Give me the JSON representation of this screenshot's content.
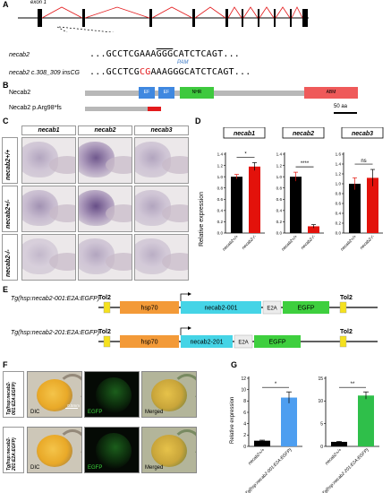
{
  "panelA": {
    "label": "A",
    "exon_label": "exon 1",
    "gene": "necab2",
    "wt_seq_pre": "GCCTCGAAA",
    "wt_seq_pam": "GGG",
    "wt_seq_post": "CATCTCAGT",
    "pam": "PAM",
    "mut_label": "necab2 c.308_309 insCG",
    "mut_seq_pre": "GCCTCG",
    "mut_seq_ins": "CG",
    "mut_seq_post": "AAAGGGCATCTCAGT",
    "dots_left": "...",
    "dots_right": "..."
  },
  "panelB": {
    "label": "B",
    "protein1": "Necab2",
    "protein2": "Necab2 p.Arg98*fs",
    "domains": [
      "EF",
      "EF",
      "NHR",
      "ABM"
    ],
    "scale": "50 aa"
  },
  "panelC": {
    "label": "C",
    "cols": [
      "necab1",
      "necab2",
      "necab3"
    ],
    "rows": [
      "necab2+/+",
      "necab2+/-",
      "necab2-/-"
    ]
  },
  "panelD": {
    "label": "D",
    "ylabel": "Relative expression",
    "xcats": [
      "necab2+/+",
      "necab2-/-"
    ],
    "charts": [
      {
        "title": "necab1",
        "values": [
          1.0,
          1.18
        ],
        "errors": [
          0.04,
          0.07
        ],
        "sig": "*",
        "ymax": 1.4,
        "ticks": [
          "0.0",
          "0.2",
          "0.4",
          "0.6",
          "0.8",
          "1.0",
          "1.2",
          "1.4"
        ]
      },
      {
        "title": "necab2",
        "values": [
          1.0,
          0.12
        ],
        "errors": [
          0.08,
          0.03
        ],
        "sig": "****",
        "ymax": 1.4,
        "ticks": [
          "0.0",
          "0.2",
          "0.4",
          "0.6",
          "0.8",
          "1.0",
          "1.2",
          "1.4"
        ]
      },
      {
        "title": "necab3",
        "values": [
          1.0,
          1.12
        ],
        "errors": [
          0.12,
          0.17
        ],
        "sig": "ns",
        "ymax": 1.6,
        "ticks": [
          "0.0",
          "0.2",
          "0.4",
          "0.6",
          "0.8",
          "1.0",
          "1.2",
          "1.4",
          "1.6"
        ]
      }
    ],
    "colors": [
      "#000000",
      "#e3120b"
    ]
  },
  "panelE": {
    "label": "E",
    "construct1": "Tg(hsp:necab2-001:E2A:EGFP)",
    "construct2": "Tg(hsp:necab2-201:E2A:EGFP)",
    "tol2": "Tol2",
    "hsp70": "hsp70",
    "n001": "necab2-001",
    "n201": "necab2-201",
    "e2a": "E2A",
    "egfp": "EGFP"
  },
  "panelF": {
    "label": "F",
    "row1": "Tg(hsp:necab2-001:E2A:EGFP)",
    "row2": "Tg(hsp:necab2-201:E2A:EGFP)",
    "dic": "DIC",
    "egfp": "EGFP",
    "merged": "Merged",
    "scale": "0.5mm"
  },
  "panelG": {
    "label": "G",
    "ylabel": "Relative expression",
    "charts": [
      {
        "cats": [
          "necab2+/+",
          "Tg(hsp:necab2-001:E2A:EGFP)"
        ],
        "values": [
          1.0,
          8.6
        ],
        "errors": [
          0.1,
          1.0
        ],
        "sig": "*",
        "ymax": 12,
        "colors": [
          "#000000",
          "#4d9ef0"
        ],
        "ticks": [
          "0",
          "2",
          "4",
          "6",
          "8",
          "10",
          "12"
        ]
      },
      {
        "cats": [
          "necab2+/+",
          "Tg(hsp:necab2-201:E2A:EGFP)"
        ],
        "values": [
          1.0,
          11.2
        ],
        "errors": [
          0.1,
          0.8
        ],
        "sig": "**",
        "ymax": 15,
        "colors": [
          "#000000",
          "#2fbf4a"
        ],
        "ticks": [
          "0",
          "5",
          "10",
          "15"
        ]
      }
    ]
  }
}
